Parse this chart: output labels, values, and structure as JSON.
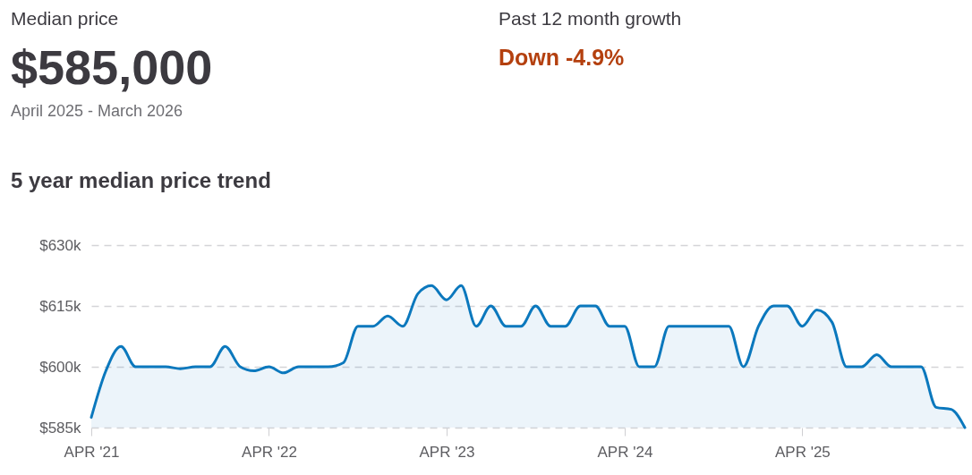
{
  "chart_data": {
    "type": "area",
    "title": "5 year median price trend",
    "annotations": [
      "Median price",
      "$585,000",
      "April 2025 - March 2026",
      "Past 12 month growth",
      "Down -4.9%"
    ],
    "x": [
      "2021-04",
      "2021-05",
      "2021-06",
      "2021-07",
      "2021-08",
      "2021-09",
      "2021-10",
      "2021-11",
      "2021-12",
      "2022-01",
      "2022-02",
      "2022-03",
      "2022-04",
      "2022-05",
      "2022-06",
      "2022-07",
      "2022-08",
      "2022-09",
      "2022-10",
      "2022-11",
      "2022-12",
      "2023-01",
      "2023-02",
      "2023-03",
      "2023-04",
      "2023-05",
      "2023-06",
      "2023-07",
      "2023-08",
      "2023-09",
      "2023-10",
      "2023-11",
      "2023-12",
      "2024-01",
      "2024-02",
      "2024-03",
      "2024-04",
      "2024-05",
      "2024-06",
      "2024-07",
      "2024-08",
      "2024-09",
      "2024-10",
      "2024-11",
      "2024-12",
      "2025-01",
      "2025-02",
      "2025-03",
      "2025-04",
      "2025-05",
      "2025-06",
      "2025-07",
      "2025-08",
      "2025-09",
      "2025-10",
      "2025-11",
      "2025-12",
      "2026-01",
      "2026-02",
      "2026-03"
    ],
    "series": [
      {
        "color": "#0b78bd",
        "values": [
          587.5,
          599,
          605,
          600,
          600,
          600,
          599.5,
          600,
          600,
          605,
          600,
          599,
          600,
          598.5,
          600,
          600,
          600,
          601,
          610,
          610,
          612.5,
          610,
          618,
          620,
          616.5,
          620,
          610,
          615,
          610,
          610,
          615,
          610,
          610,
          615,
          615,
          610,
          610,
          600,
          600,
          610,
          610,
          610,
          610,
          610,
          600,
          610,
          615,
          615,
          610,
          614,
          611,
          600,
          600,
          603,
          600,
          600,
          600,
          590,
          589.5,
          585
        ]
      }
    ],
    "xlim": [
      "2021-04",
      "2026-03"
    ],
    "xticks": [
      {
        "value": "2021-04",
        "label": "APR '21"
      },
      {
        "value": "2022-04",
        "label": "APR '22"
      },
      {
        "value": "2023-04",
        "label": "APR '23"
      },
      {
        "value": "2024-04",
        "label": "APR '24"
      },
      {
        "value": "2025-04",
        "label": "APR '25"
      }
    ],
    "ylim": [
      585,
      630
    ],
    "yticks": [
      {
        "value": 585,
        "label": "$585k"
      },
      {
        "value": 600,
        "label": "$600k"
      },
      {
        "value": 615,
        "label": "$615k"
      },
      {
        "value": 630,
        "label": "$630k"
      }
    ],
    "grid": "y",
    "legend": false
  }
}
